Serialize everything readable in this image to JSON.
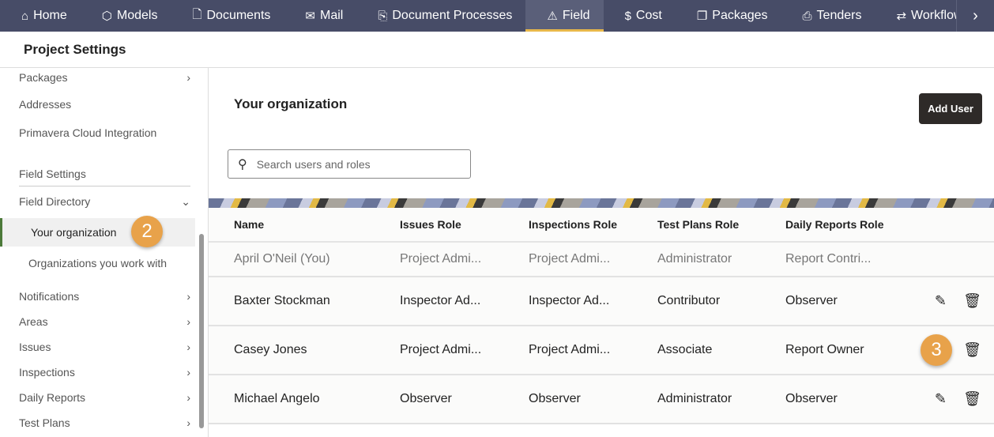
{
  "nav": {
    "items": [
      {
        "label": "Home",
        "icon": "home-icon",
        "glyph": "⌂"
      },
      {
        "label": "Models",
        "icon": "cube-icon",
        "glyph": "⬡"
      },
      {
        "label": "Documents",
        "icon": "document-icon",
        "glyph": "🗋"
      },
      {
        "label": "Mail",
        "icon": "mail-icon",
        "glyph": "✉"
      },
      {
        "label": "Document Processes",
        "icon": "document-process-icon",
        "glyph": "⎘"
      },
      {
        "label": "Field",
        "icon": "warning-icon",
        "glyph": "⚠"
      },
      {
        "label": "Cost",
        "icon": "dollar-icon",
        "glyph": "$"
      },
      {
        "label": "Packages",
        "icon": "packages-icon",
        "glyph": "❐"
      },
      {
        "label": "Tenders",
        "icon": "tenders-icon",
        "glyph": "⎙"
      },
      {
        "label": "Workflows",
        "icon": "workflows-icon",
        "glyph": "⇄"
      }
    ],
    "active": "Field",
    "more": "›"
  },
  "header": {
    "title": "Project Settings"
  },
  "sidebar": {
    "items": [
      {
        "label": "Packages",
        "chev": "›"
      },
      {
        "label": "Addresses"
      },
      {
        "label": "Primavera Cloud Integration"
      },
      {
        "label": "Field Settings"
      },
      {
        "label": "Field Directory",
        "chev": "⌄"
      },
      {
        "label": "Your organization"
      },
      {
        "label": "Organizations you work with"
      },
      {
        "label": "Notifications",
        "chev": "›"
      },
      {
        "label": "Areas",
        "chev": "›"
      },
      {
        "label": "Issues",
        "chev": "›"
      },
      {
        "label": "Inspections",
        "chev": "›"
      },
      {
        "label": "Daily Reports",
        "chev": "›"
      },
      {
        "label": "Test Plans",
        "chev": "›"
      }
    ]
  },
  "main": {
    "title": "Your organization",
    "add_user": "Add User",
    "search_placeholder": "Search users and roles",
    "columns": [
      "Name",
      "Issues Role",
      "Inspections Role",
      "Test Plans Role",
      "Daily Reports Role"
    ],
    "rows": [
      [
        "April O'Neil (You)",
        "Project Admi...",
        "Project Admi...",
        "Administrator",
        "Report Contri..."
      ],
      [
        "Baxter Stockman",
        "Inspector Ad...",
        "Inspector Ad...",
        "Contributor",
        "Observer"
      ],
      [
        "Casey Jones",
        "Project Admi...",
        "Project Admi...",
        "Associate",
        "Report Owner"
      ],
      [
        "Michael Angelo",
        "Observer",
        "Observer",
        "Administrator",
        "Observer"
      ]
    ]
  },
  "callouts": [
    "2",
    "3"
  ],
  "colors": {
    "nav_bg": "#474c67",
    "accent": "#e8b84a",
    "callout": "#e8a24a",
    "button": "#2e2a28"
  }
}
